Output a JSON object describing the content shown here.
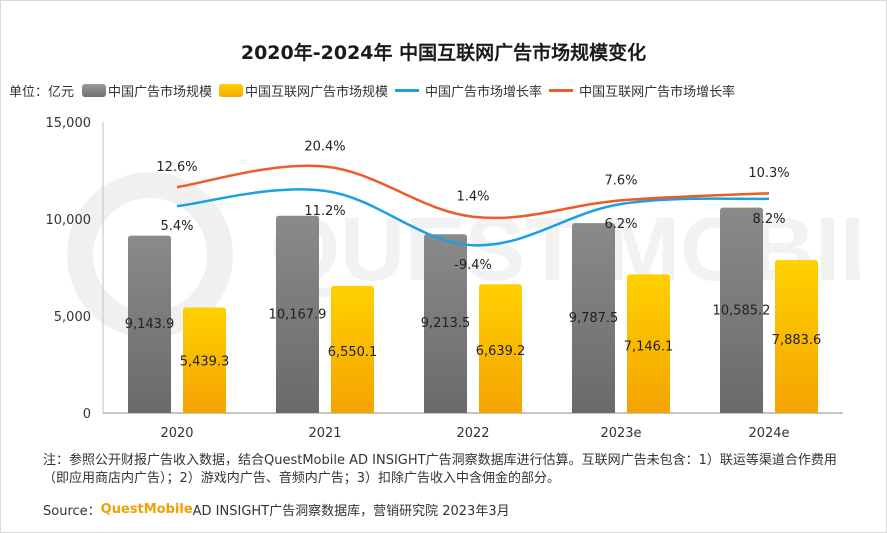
{
  "title": "2020年-2024年 中国互联网广告市场规模变化",
  "legend": {
    "unit": "单位：亿元",
    "items": [
      {
        "label": "中国广告市场规模",
        "color": "#8c8c8c",
        "kind": "bar"
      },
      {
        "label": "中国互联网广告市场规模",
        "color": "#ffc000",
        "kind": "bar"
      },
      {
        "label": "中国广告市场增长率",
        "color": "#1ba1e2",
        "kind": "line"
      },
      {
        "label": "中国互联网广告市场增长率",
        "color": "#f05a28",
        "kind": "line"
      }
    ]
  },
  "watermark": "QUEST MOBILE",
  "chart_data": {
    "type": "bar",
    "categories": [
      "2020",
      "2021",
      "2022",
      "2023e",
      "2024e"
    ],
    "ylim": [
      0,
      15000
    ],
    "yticks": [
      "0",
      "5,000",
      "10,000",
      "15,000"
    ],
    "ytick_values": [
      0,
      5000,
      10000,
      15000
    ],
    "series": [
      {
        "name": "中国广告市场规模",
        "values": [
          9143.9,
          10167.9,
          9213.5,
          9787.5,
          10585.2
        ],
        "labels": [
          "9,143.9",
          "10,167.9",
          "9,213.5",
          "9,787.5",
          "10,585.2"
        ],
        "color": "#8c8c8c"
      },
      {
        "name": "中国互联网广告市场规模",
        "values": [
          5439.3,
          6550.1,
          6639.2,
          7146.1,
          7883.6
        ],
        "labels": [
          "5,439.3",
          "6,550.1",
          "6,639.2",
          "7,146.1",
          "7,883.6"
        ],
        "color": "#ffc000"
      }
    ],
    "rate_series": [
      {
        "name": "中国广告市场增长率",
        "values": [
          5.4,
          11.2,
          -9.4,
          6.2,
          8.2
        ],
        "labels": [
          "5.4%",
          "11.2%",
          "-9.4%",
          "6.2%",
          "8.2%"
        ],
        "color": "#1ba1e2"
      },
      {
        "name": "中国互联网广告市场增长率",
        "values": [
          12.6,
          20.4,
          1.4,
          7.6,
          10.3
        ],
        "labels": [
          "12.6%",
          "20.4%",
          "1.4%",
          "7.6%",
          "10.3%"
        ],
        "color": "#f05a28"
      }
    ]
  },
  "note": "注：参照公开财报广告收入数据，结合QuestMobile AD INSIGHT广告洞察数据库进行估算。互联网广告未包含：1）联运等渠道合作费用（即应用商店内广告）；2）游戏内广告、音频内广告；3）扣除广告收入中含佣金的部分。",
  "source": {
    "prefix": "Source：",
    "brand": "QuestMobile",
    "rest": " AD INSIGHT广告洞察数据库，营销研究院 2023年3月"
  }
}
